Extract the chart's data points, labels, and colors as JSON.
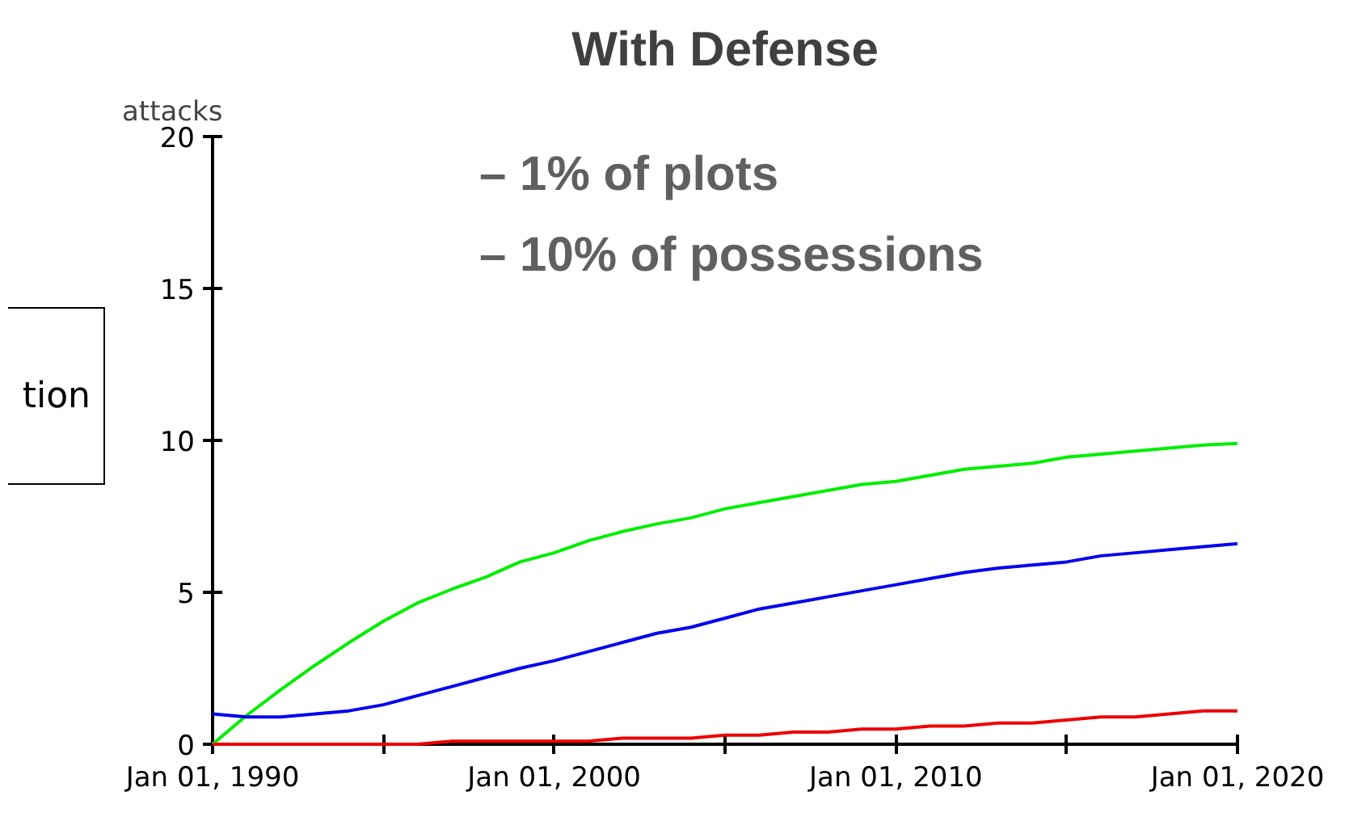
{
  "chart_data": {
    "type": "line",
    "title": "With Defense",
    "ylabel": "attacks",
    "annotations": [
      "– 1% of plots",
      "– 10% of possessions",
      "tion"
    ],
    "x": [
      "1990",
      "1991",
      "1992",
      "1993",
      "1994",
      "1995",
      "1996",
      "1997",
      "1998",
      "1999",
      "2000",
      "2001",
      "2002",
      "2003",
      "2004",
      "2005",
      "2006",
      "2007",
      "2008",
      "2009",
      "2010",
      "2011",
      "2012",
      "2013",
      "2014",
      "2015",
      "2016",
      "2017",
      "2018",
      "2019",
      "2020"
    ],
    "series": [
      {
        "color": "#00ee00",
        "values": [
          0,
          0.95,
          1.8,
          2.6,
          3.35,
          4.05,
          4.65,
          5.1,
          5.5,
          6.0,
          6.3,
          6.7,
          7.0,
          7.25,
          7.45,
          7.75,
          7.95,
          8.15,
          8.35,
          8.55,
          8.65,
          8.85,
          9.05,
          9.15,
          9.25,
          9.45,
          9.55,
          9.65,
          9.75,
          9.85,
          9.9
        ]
      },
      {
        "color": "#0000ee",
        "values": [
          1.0,
          0.9,
          0.9,
          1.0,
          1.1,
          1.3,
          1.6,
          1.9,
          2.2,
          2.5,
          2.75,
          3.05,
          3.35,
          3.65,
          3.85,
          4.15,
          4.45,
          4.65,
          4.85,
          5.05,
          5.25,
          5.45,
          5.65,
          5.8,
          5.9,
          6.0,
          6.2,
          6.3,
          6.4,
          6.5,
          6.6
        ]
      },
      {
        "color": "#ee0000",
        "values": [
          0,
          0,
          0,
          0,
          0,
          0,
          0,
          0.1,
          0.1,
          0.1,
          0.1,
          0.1,
          0.2,
          0.2,
          0.2,
          0.3,
          0.3,
          0.4,
          0.4,
          0.5,
          0.5,
          0.6,
          0.6,
          0.7,
          0.7,
          0.8,
          0.9,
          0.9,
          1.0,
          1.1,
          1.1
        ]
      }
    ],
    "xlim": [
      "1990",
      "2020"
    ],
    "xticks": [
      {
        "value": "1990",
        "label": "Jan 01, 1990"
      },
      {
        "value": "1995",
        "label": null
      },
      {
        "value": "2000",
        "label": "Jan 01, 2000"
      },
      {
        "value": "2005",
        "label": null
      },
      {
        "value": "2010",
        "label": "Jan 01, 2010"
      },
      {
        "value": "2015",
        "label": null
      },
      {
        "value": "2020",
        "label": "Jan 01, 2020"
      }
    ],
    "ylim": [
      0,
      20
    ],
    "yticks": [
      0,
      5,
      10,
      15,
      20
    ],
    "grid": false,
    "marker": "none",
    "line_style": "solid"
  }
}
